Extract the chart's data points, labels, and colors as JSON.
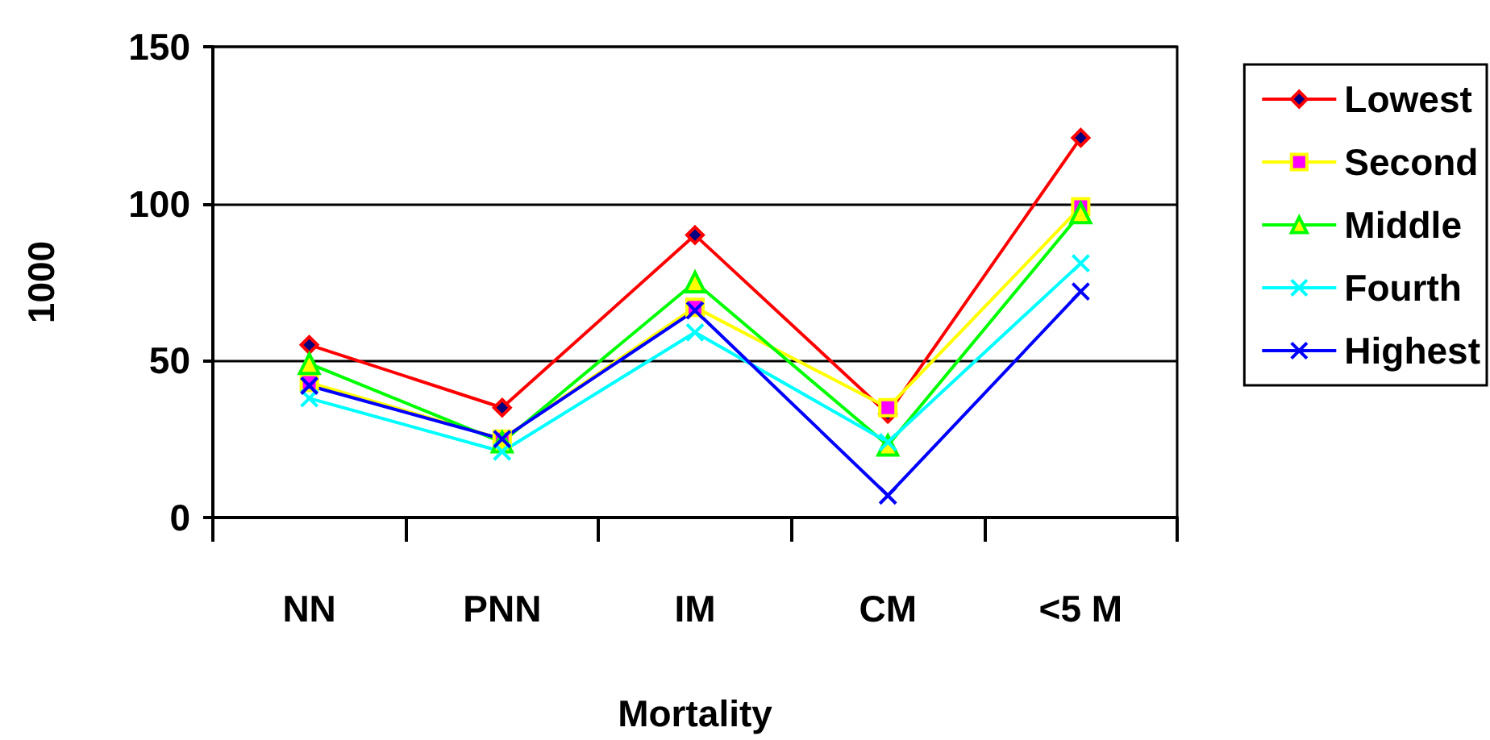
{
  "chart_data": {
    "type": "line",
    "xlabel": "Mortality",
    "ylabel": "1000",
    "categories": [
      "NN",
      "PNN",
      "IM",
      "CM",
      "<5 M"
    ],
    "series": [
      {
        "name": "Lowest",
        "color": "#ff0000",
        "marker": "diamond",
        "values": [
          55,
          35,
          90,
          33,
          121
        ]
      },
      {
        "name": "Second",
        "color": "#ffff00",
        "marker": "square",
        "values": [
          43,
          25,
          67,
          35,
          99
        ]
      },
      {
        "name": "Middle",
        "color": "#00ff00",
        "marker": "triangle",
        "values": [
          49,
          24,
          75,
          23,
          97
        ]
      },
      {
        "name": "Fourth",
        "color": "#00ffff",
        "marker": "cross",
        "values": [
          38,
          21,
          59,
          24,
          81
        ]
      },
      {
        "name": "Highest",
        "color": "#0000ff",
        "marker": "cross",
        "values": [
          42,
          25,
          66,
          7,
          72
        ]
      }
    ],
    "ylim": [
      0,
      150
    ],
    "yticks": [
      0,
      50,
      100,
      150
    ],
    "grid": "y",
    "legend": "right",
    "line_style": "solid"
  }
}
